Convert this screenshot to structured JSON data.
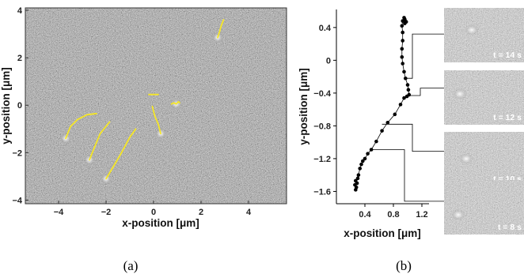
{
  "chart_data": [
    {
      "type": "scatter",
      "panel": "a",
      "xlabel": "x-position [μm]",
      "ylabel": "y-position [μm]",
      "xlim": [
        -5.4,
        5.6
      ],
      "ylim": [
        -4.15,
        4.1
      ],
      "x_ticks": [
        -4,
        -2,
        0,
        2,
        4
      ],
      "y_ticks": [
        -4,
        -2,
        0,
        2,
        4
      ],
      "background": "grey speckled microscopy image",
      "trajectory_color": "#f5e626",
      "trajectories": [
        {
          "points": [
            [
              2.7,
              2.85
            ],
            [
              2.78,
              3.1
            ],
            [
              2.85,
              3.35
            ],
            [
              2.95,
              3.6
            ]
          ]
        },
        {
          "points": [
            [
              -3.7,
              -1.4
            ],
            [
              -3.5,
              -0.9
            ],
            [
              -3.2,
              -0.6
            ],
            [
              -2.8,
              -0.4
            ],
            [
              -2.4,
              -0.35
            ]
          ]
        },
        {
          "points": [
            [
              -2.7,
              -2.3
            ],
            [
              -2.5,
              -1.8
            ],
            [
              -2.25,
              -1.2
            ],
            [
              -1.85,
              -0.7
            ]
          ]
        },
        {
          "points": [
            [
              -2.0,
              -3.1
            ],
            [
              -1.7,
              -2.6
            ],
            [
              -1.35,
              -2.0
            ],
            [
              -1.0,
              -1.35
            ],
            [
              -0.75,
              -1.0
            ]
          ]
        },
        {
          "points": [
            [
              0.3,
              -1.2
            ],
            [
              0.2,
              -0.8
            ],
            [
              0.05,
              -0.45
            ],
            [
              -0.05,
              -0.05
            ]
          ]
        },
        {
          "points": [
            [
              0.75,
              0.05
            ],
            [
              0.85,
              0.1
            ],
            [
              0.95,
              0.05
            ],
            [
              1.05,
              0.15
            ],
            [
              1.1,
              0.1
            ]
          ]
        },
        {
          "points": [
            [
              -0.2,
              0.45
            ],
            [
              0.05,
              0.45
            ],
            [
              0.2,
              0.45
            ]
          ]
        }
      ],
      "bright_spots": [
        [
          2.7,
          2.85
        ],
        [
          -3.7,
          -1.4
        ],
        [
          -2.7,
          -2.3
        ],
        [
          -2.0,
          -3.1
        ],
        [
          0.3,
          -1.2
        ],
        [
          0.95,
          0.05
        ]
      ]
    },
    {
      "type": "scatter",
      "panel": "b",
      "xlabel": "x-position [μm]",
      "ylabel": "y-position [μm]",
      "xlim": [
        0.0,
        1.3
      ],
      "ylim": [
        -1.75,
        0.62
      ],
      "x_ticks": [
        0.4,
        0.8,
        1.2
      ],
      "y_ticks": [
        0.4,
        0.0,
        -0.4,
        -0.8,
        -1.2,
        -1.6
      ],
      "line": true,
      "points": [
        [
          0.27,
          -1.58
        ],
        [
          0.28,
          -1.55
        ],
        [
          0.26,
          -1.52
        ],
        [
          0.29,
          -1.5
        ],
        [
          0.27,
          -1.47
        ],
        [
          0.3,
          -1.44
        ],
        [
          0.31,
          -1.4
        ],
        [
          0.33,
          -1.32
        ],
        [
          0.35,
          -1.27
        ],
        [
          0.37,
          -1.23
        ],
        [
          0.4,
          -1.2
        ],
        [
          0.44,
          -1.14
        ],
        [
          0.49,
          -1.09
        ],
        [
          0.56,
          -0.99
        ],
        [
          0.64,
          -0.86
        ],
        [
          0.72,
          -0.76
        ],
        [
          0.82,
          -0.66
        ],
        [
          0.9,
          -0.54
        ],
        [
          0.95,
          -0.46
        ],
        [
          0.99,
          -0.44
        ],
        [
          1.02,
          -0.42
        ],
        [
          1.01,
          -0.36
        ],
        [
          1.0,
          -0.3
        ],
        [
          0.97,
          -0.22
        ],
        [
          0.95,
          -0.14
        ],
        [
          0.93,
          -0.04
        ],
        [
          0.92,
          0.04
        ],
        [
          0.92,
          0.14
        ],
        [
          0.93,
          0.24
        ],
        [
          0.93,
          0.34
        ],
        [
          0.92,
          0.42
        ],
        [
          0.93,
          0.48
        ],
        [
          0.96,
          0.5
        ],
        [
          0.98,
          0.47
        ],
        [
          0.96,
          0.45
        ],
        [
          0.95,
          0.52
        ]
      ],
      "marker_color": "#000000"
    }
  ],
  "frames": [
    {
      "label": "t = 14 s"
    },
    {
      "label": "t = 12 s"
    },
    {
      "label": "t = 10 s"
    },
    {
      "label": "t = 8 s"
    }
  ],
  "captions": {
    "a": "(a)",
    "b": "(b)"
  }
}
